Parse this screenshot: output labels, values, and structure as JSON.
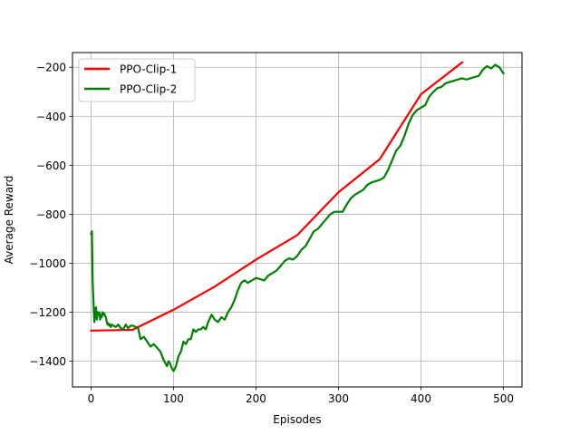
{
  "chart_data": {
    "type": "line",
    "title": "",
    "xlabel": "Episodes",
    "ylabel": "Average Reward",
    "xlim": [
      -22.5,
      522.5
    ],
    "ylim": [
      -1505,
      -140
    ],
    "xticks": [
      0,
      100,
      200,
      300,
      400,
      500
    ],
    "yticks": [
      -1400,
      -1200,
      -1000,
      -800,
      -600,
      -400,
      -200
    ],
    "xtick_labels": [
      "0",
      "100",
      "200",
      "300",
      "400",
      "500"
    ],
    "ytick_labels": [
      "−1400",
      "−1200",
      "−1000",
      "−800",
      "−600",
      "−400",
      "−200"
    ],
    "grid": true,
    "legend_placement": "top-left",
    "series": [
      {
        "name": "PPO-Clip-1",
        "color": "#ff0000",
        "x": [
          0,
          50,
          100,
          150,
          200,
          250,
          300,
          350,
          400,
          450
        ],
        "y": [
          -1275,
          -1272,
          -1190,
          -1095,
          -985,
          -885,
          -710,
          -575,
          -310,
          -180
        ]
      },
      {
        "name": "PPO-Clip-2",
        "color": "#008000",
        "x": [
          0,
          1,
          2,
          3,
          4,
          5,
          6,
          7,
          8,
          9,
          10,
          11,
          12,
          13,
          14,
          15,
          16,
          17,
          18,
          19,
          20,
          21,
          22,
          23,
          24,
          25,
          27,
          30,
          33,
          36,
          39,
          42,
          45,
          48,
          51,
          54,
          57,
          60,
          64,
          68,
          72,
          76,
          80,
          84,
          88,
          92,
          94,
          96,
          98,
          100,
          103,
          106,
          109,
          112,
          115,
          118,
          121,
          124,
          127,
          130,
          133,
          136,
          139,
          142,
          146,
          150,
          154,
          158,
          162,
          166,
          170,
          174,
          178,
          182,
          186,
          190,
          195,
          200,
          205,
          210,
          215,
          220,
          225,
          230,
          235,
          240,
          245,
          250,
          255,
          260,
          265,
          270,
          275,
          280,
          285,
          290,
          295,
          300,
          305,
          310,
          315,
          320,
          325,
          330,
          335,
          340,
          345,
          350,
          355,
          360,
          365,
          370,
          375,
          380,
          385,
          390,
          395,
          400,
          405,
          410,
          415,
          420,
          425,
          430,
          435,
          440,
          445,
          450,
          455,
          460,
          465,
          470,
          475,
          480,
          485,
          490,
          495,
          500
        ],
        "y": [
          -880,
          -870,
          -1080,
          -1160,
          -1240,
          -1190,
          -1180,
          -1230,
          -1200,
          -1210,
          -1200,
          -1230,
          -1210,
          -1220,
          -1200,
          -1210,
          -1205,
          -1215,
          -1220,
          -1240,
          -1250,
          -1245,
          -1255,
          -1250,
          -1260,
          -1250,
          -1255,
          -1260,
          -1250,
          -1265,
          -1270,
          -1250,
          -1265,
          -1255,
          -1255,
          -1260,
          -1265,
          -1310,
          -1300,
          -1320,
          -1340,
          -1330,
          -1345,
          -1360,
          -1395,
          -1420,
          -1400,
          -1410,
          -1430,
          -1440,
          -1420,
          -1380,
          -1360,
          -1320,
          -1330,
          -1310,
          -1310,
          -1270,
          -1280,
          -1270,
          -1270,
          -1260,
          -1270,
          -1240,
          -1210,
          -1230,
          -1240,
          -1220,
          -1230,
          -1200,
          -1180,
          -1150,
          -1110,
          -1080,
          -1070,
          -1080,
          -1070,
          -1060,
          -1065,
          -1070,
          -1050,
          -1040,
          -1030,
          -1010,
          -990,
          -980,
          -985,
          -970,
          -945,
          -930,
          -900,
          -870,
          -860,
          -840,
          -820,
          -800,
          -790,
          -790,
          -790,
          -760,
          -735,
          -720,
          -710,
          -700,
          -680,
          -670,
          -665,
          -660,
          -650,
          -620,
          -580,
          -540,
          -520,
          -480,
          -430,
          -395,
          -375,
          -365,
          -355,
          -320,
          -300,
          -285,
          -280,
          -265,
          -260,
          -255,
          -250,
          -245,
          -250,
          -245,
          -240,
          -235,
          -210,
          -195,
          -205,
          -190,
          -200,
          -225
        ]
      }
    ]
  }
}
